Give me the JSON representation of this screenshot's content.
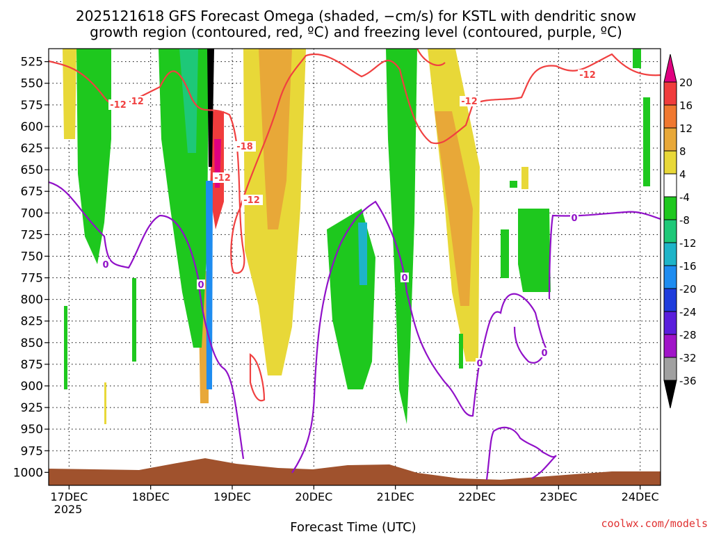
{
  "chart_data": {
    "type": "heatmap",
    "title_line1": "2025121618 GFS Forecast Omega (shaded, −cm/s) for KSTL with dendritic snow",
    "title_line2": "growth region (contoured, red, ºC) and freezing level (contoured, purple, ºC)",
    "xlabel": "Forecast Time (UTC)",
    "watermark": "coolwx.com/models",
    "x_ticks": [
      "17DEC",
      "18DEC",
      "19DEC",
      "20DEC",
      "21DEC",
      "22DEC",
      "23DEC",
      "24DEC"
    ],
    "x_tick_sublabel": "2025",
    "x_range_days": [
      16.75,
      24.25
    ],
    "y_ticks": [
      525,
      550,
      575,
      600,
      625,
      650,
      675,
      700,
      725,
      750,
      775,
      800,
      825,
      850,
      875,
      900,
      925,
      950,
      975,
      1000
    ],
    "y_range_hpa": [
      1015,
      510
    ],
    "colorbar": {
      "labels": [
        "20",
        "16",
        "12",
        "8",
        "4",
        "-4",
        "-8",
        "-12",
        "-16",
        "-20",
        "-24",
        "-28",
        "-32",
        "-36"
      ],
      "colors": [
        "#e00080",
        "#f03c3c",
        "#f07830",
        "#e8a838",
        "#e8d838",
        "#ffffff",
        "#1ec81e",
        "#1ec878",
        "#1eb4c8",
        "#1e8cf0",
        "#1e3cdc",
        "#5a1edc",
        "#a014c8",
        "#a0a0a0",
        "#000000"
      ],
      "top_tip": "#e00080",
      "bottom_tip": "#000000"
    },
    "contour_labels": {
      "red": [
        "-12",
        "-12",
        "-18",
        "-12",
        "-12",
        "-12",
        "-12"
      ],
      "purple": [
        "0",
        "0",
        "0",
        "0",
        "0",
        "0"
      ]
    },
    "contour_colors": {
      "dendritic": "#f04040",
      "freezing": "#9010c8",
      "ground": "#a0522d"
    }
  }
}
